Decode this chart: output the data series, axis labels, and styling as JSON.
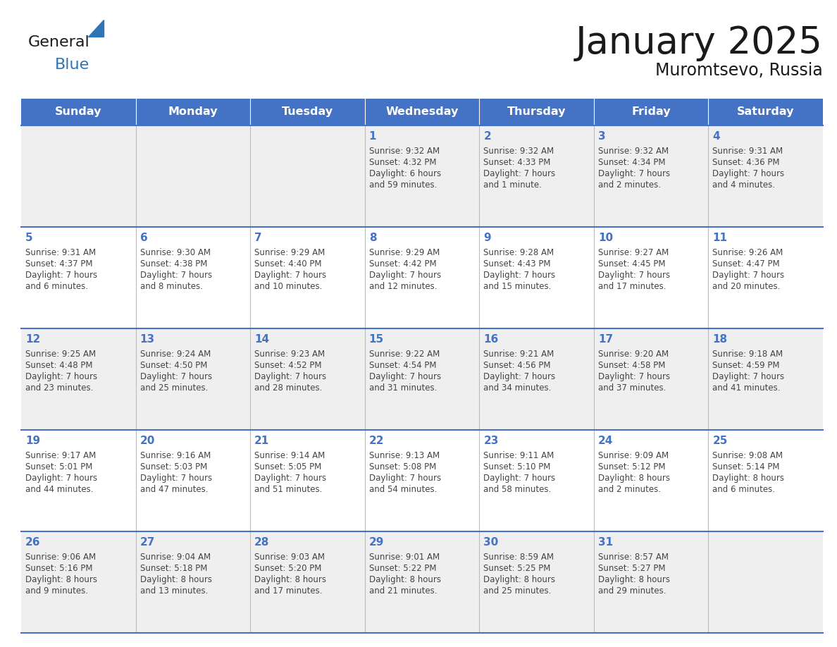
{
  "title": "January 2025",
  "subtitle": "Muromtsevo, Russia",
  "days_of_week": [
    "Sunday",
    "Monday",
    "Tuesday",
    "Wednesday",
    "Thursday",
    "Friday",
    "Saturday"
  ],
  "header_bg": "#4472C4",
  "header_text_color": "#FFFFFF",
  "row_bg_odd": "#EFEFEF",
  "row_bg_even": "#FFFFFF",
  "border_color": "#4472C4",
  "cell_divider_color": "#BBBBBB",
  "day_number_color": "#4472C4",
  "cell_text_color": "#444444",
  "title_color": "#1a1a1a",
  "subtitle_color": "#1a1a1a",
  "logo_general_color": "#1a1a1a",
  "logo_blue_color": "#2E75B6",
  "fig_width": 11.88,
  "fig_height": 9.18,
  "calendar": [
    [
      {
        "day": null,
        "sunrise": null,
        "sunset": null,
        "daylight_line1": null,
        "daylight_line2": null
      },
      {
        "day": null,
        "sunrise": null,
        "sunset": null,
        "daylight_line1": null,
        "daylight_line2": null
      },
      {
        "day": null,
        "sunrise": null,
        "sunset": null,
        "daylight_line1": null,
        "daylight_line2": null
      },
      {
        "day": 1,
        "sunrise": "9:32 AM",
        "sunset": "4:32 PM",
        "daylight_line1": "Daylight: 6 hours",
        "daylight_line2": "and 59 minutes."
      },
      {
        "day": 2,
        "sunrise": "9:32 AM",
        "sunset": "4:33 PM",
        "daylight_line1": "Daylight: 7 hours",
        "daylight_line2": "and 1 minute."
      },
      {
        "day": 3,
        "sunrise": "9:32 AM",
        "sunset": "4:34 PM",
        "daylight_line1": "Daylight: 7 hours",
        "daylight_line2": "and 2 minutes."
      },
      {
        "day": 4,
        "sunrise": "9:31 AM",
        "sunset": "4:36 PM",
        "daylight_line1": "Daylight: 7 hours",
        "daylight_line2": "and 4 minutes."
      }
    ],
    [
      {
        "day": 5,
        "sunrise": "9:31 AM",
        "sunset": "4:37 PM",
        "daylight_line1": "Daylight: 7 hours",
        "daylight_line2": "and 6 minutes."
      },
      {
        "day": 6,
        "sunrise": "9:30 AM",
        "sunset": "4:38 PM",
        "daylight_line1": "Daylight: 7 hours",
        "daylight_line2": "and 8 minutes."
      },
      {
        "day": 7,
        "sunrise": "9:29 AM",
        "sunset": "4:40 PM",
        "daylight_line1": "Daylight: 7 hours",
        "daylight_line2": "and 10 minutes."
      },
      {
        "day": 8,
        "sunrise": "9:29 AM",
        "sunset": "4:42 PM",
        "daylight_line1": "Daylight: 7 hours",
        "daylight_line2": "and 12 minutes."
      },
      {
        "day": 9,
        "sunrise": "9:28 AM",
        "sunset": "4:43 PM",
        "daylight_line1": "Daylight: 7 hours",
        "daylight_line2": "and 15 minutes."
      },
      {
        "day": 10,
        "sunrise": "9:27 AM",
        "sunset": "4:45 PM",
        "daylight_line1": "Daylight: 7 hours",
        "daylight_line2": "and 17 minutes."
      },
      {
        "day": 11,
        "sunrise": "9:26 AM",
        "sunset": "4:47 PM",
        "daylight_line1": "Daylight: 7 hours",
        "daylight_line2": "and 20 minutes."
      }
    ],
    [
      {
        "day": 12,
        "sunrise": "9:25 AM",
        "sunset": "4:48 PM",
        "daylight_line1": "Daylight: 7 hours",
        "daylight_line2": "and 23 minutes."
      },
      {
        "day": 13,
        "sunrise": "9:24 AM",
        "sunset": "4:50 PM",
        "daylight_line1": "Daylight: 7 hours",
        "daylight_line2": "and 25 minutes."
      },
      {
        "day": 14,
        "sunrise": "9:23 AM",
        "sunset": "4:52 PM",
        "daylight_line1": "Daylight: 7 hours",
        "daylight_line2": "and 28 minutes."
      },
      {
        "day": 15,
        "sunrise": "9:22 AM",
        "sunset": "4:54 PM",
        "daylight_line1": "Daylight: 7 hours",
        "daylight_line2": "and 31 minutes."
      },
      {
        "day": 16,
        "sunrise": "9:21 AM",
        "sunset": "4:56 PM",
        "daylight_line1": "Daylight: 7 hours",
        "daylight_line2": "and 34 minutes."
      },
      {
        "day": 17,
        "sunrise": "9:20 AM",
        "sunset": "4:58 PM",
        "daylight_line1": "Daylight: 7 hours",
        "daylight_line2": "and 37 minutes."
      },
      {
        "day": 18,
        "sunrise": "9:18 AM",
        "sunset": "4:59 PM",
        "daylight_line1": "Daylight: 7 hours",
        "daylight_line2": "and 41 minutes."
      }
    ],
    [
      {
        "day": 19,
        "sunrise": "9:17 AM",
        "sunset": "5:01 PM",
        "daylight_line1": "Daylight: 7 hours",
        "daylight_line2": "and 44 minutes."
      },
      {
        "day": 20,
        "sunrise": "9:16 AM",
        "sunset": "5:03 PM",
        "daylight_line1": "Daylight: 7 hours",
        "daylight_line2": "and 47 minutes."
      },
      {
        "day": 21,
        "sunrise": "9:14 AM",
        "sunset": "5:05 PM",
        "daylight_line1": "Daylight: 7 hours",
        "daylight_line2": "and 51 minutes."
      },
      {
        "day": 22,
        "sunrise": "9:13 AM",
        "sunset": "5:08 PM",
        "daylight_line1": "Daylight: 7 hours",
        "daylight_line2": "and 54 minutes."
      },
      {
        "day": 23,
        "sunrise": "9:11 AM",
        "sunset": "5:10 PM",
        "daylight_line1": "Daylight: 7 hours",
        "daylight_line2": "and 58 minutes."
      },
      {
        "day": 24,
        "sunrise": "9:09 AM",
        "sunset": "5:12 PM",
        "daylight_line1": "Daylight: 8 hours",
        "daylight_line2": "and 2 minutes."
      },
      {
        "day": 25,
        "sunrise": "9:08 AM",
        "sunset": "5:14 PM",
        "daylight_line1": "Daylight: 8 hours",
        "daylight_line2": "and 6 minutes."
      }
    ],
    [
      {
        "day": 26,
        "sunrise": "9:06 AM",
        "sunset": "5:16 PM",
        "daylight_line1": "Daylight: 8 hours",
        "daylight_line2": "and 9 minutes."
      },
      {
        "day": 27,
        "sunrise": "9:04 AM",
        "sunset": "5:18 PM",
        "daylight_line1": "Daylight: 8 hours",
        "daylight_line2": "and 13 minutes."
      },
      {
        "day": 28,
        "sunrise": "9:03 AM",
        "sunset": "5:20 PM",
        "daylight_line1": "Daylight: 8 hours",
        "daylight_line2": "and 17 minutes."
      },
      {
        "day": 29,
        "sunrise": "9:01 AM",
        "sunset": "5:22 PM",
        "daylight_line1": "Daylight: 8 hours",
        "daylight_line2": "and 21 minutes."
      },
      {
        "day": 30,
        "sunrise": "8:59 AM",
        "sunset": "5:25 PM",
        "daylight_line1": "Daylight: 8 hours",
        "daylight_line2": "and 25 minutes."
      },
      {
        "day": 31,
        "sunrise": "8:57 AM",
        "sunset": "5:27 PM",
        "daylight_line1": "Daylight: 8 hours",
        "daylight_line2": "and 29 minutes."
      },
      {
        "day": null,
        "sunrise": null,
        "sunset": null,
        "daylight_line1": null,
        "daylight_line2": null
      }
    ]
  ]
}
